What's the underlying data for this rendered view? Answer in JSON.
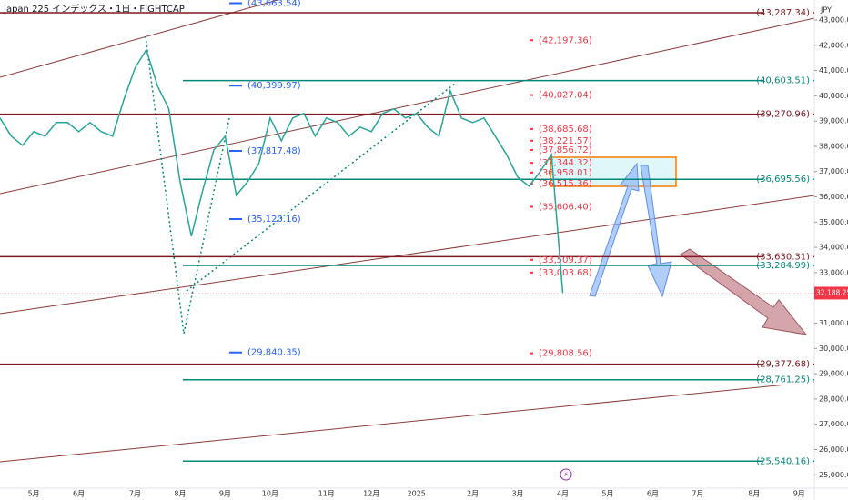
{
  "chart_data": {
    "type": "line",
    "title": "Japan 225 インデックス・1日・FIGHTCAP",
    "currency": "JPY",
    "color": "#26a69a",
    "categories": [
      null,
      null,
      null,
      "5月",
      null,
      null,
      null,
      "6月",
      null,
      null,
      null,
      null,
      "7月",
      null,
      null,
      null,
      "8月",
      null,
      null,
      null,
      "9月",
      null,
      null,
      null,
      "10月",
      null,
      null,
      null,
      null,
      "11月",
      null,
      null,
      null,
      "12月",
      null,
      null,
      null,
      "2025",
      null,
      null,
      null,
      null,
      "2月",
      null,
      null,
      null,
      "3月",
      null,
      null,
      null,
      "4月",
      null,
      null,
      null,
      "5月",
      null,
      null,
      null,
      "6月",
      null,
      null,
      null,
      "7月",
      null,
      null,
      null,
      null,
      "8月",
      null,
      null,
      null,
      "9月"
    ],
    "values": [
      39120,
      38400,
      38040,
      38580,
      38400,
      38940,
      38940,
      38580,
      38940,
      38580,
      38400,
      39840,
      41100,
      41820,
      40380,
      39480,
      36600,
      34440,
      36240,
      37860,
      38400,
      36060,
      36600,
      37320,
      39120,
      38220,
      39120,
      39300,
      38400,
      39120,
      38940,
      38400,
      38760,
      38580,
      39300,
      39480,
      39120,
      39300,
      38760,
      38400,
      40200,
      39120,
      38940,
      39120,
      38400,
      37680,
      36780,
      36420,
      37000,
      37680,
      32188.25,
      null,
      null,
      null,
      null,
      null,
      null,
      null,
      null,
      null,
      null,
      null,
      null,
      null,
      null,
      null,
      null,
      null,
      null,
      null,
      null,
      null
    ],
    "ylim": [
      24470,
      43790
    ],
    "yticks": [
      {
        "value": 43000,
        "label": "43,000.00"
      },
      {
        "value": 42000,
        "label": "42,000.00"
      },
      {
        "value": 41000,
        "label": "41,000.00"
      },
      {
        "value": 40000,
        "label": "40,000.00"
      },
      {
        "value": 39000,
        "label": "39,000.00"
      },
      {
        "value": 38000,
        "label": "38,000.00"
      },
      {
        "value": 37000,
        "label": "37,000.00"
      },
      {
        "value": 36000,
        "label": "36,000.00"
      },
      {
        "value": 35000,
        "label": "35,000.00"
      },
      {
        "value": 34000,
        "label": "34,000.00"
      },
      {
        "value": 33000,
        "label": "33,000.00"
      },
      {
        "value": 31000,
        "label": "31,000.00"
      },
      {
        "value": 30000,
        "label": "30,000.00"
      },
      {
        "value": 29000,
        "label": "29,000.00"
      },
      {
        "value": 28000,
        "label": "28,000.00"
      },
      {
        "value": 27000,
        "label": "27,000.00"
      },
      {
        "value": 26000,
        "label": "26,000.00"
      },
      {
        "value": 25000,
        "label": "25,000.00"
      }
    ],
    "last_price": {
      "value": 32188.25,
      "label": "32,188.25",
      "color": "#f23645"
    },
    "levels": [
      {
        "value": 43287.34,
        "label": "(43,287.34)",
        "color": "#801922"
      },
      {
        "value": 40603.51,
        "label": "(40,603.51)",
        "color": "#00897b"
      },
      {
        "value": 39270.96,
        "label": "(39,270.96)",
        "color": "#801922"
      },
      {
        "value": 36695.56,
        "label": "(36,695.56)",
        "color": "#00897b"
      },
      {
        "value": 33630.31,
        "label": "(33,630.31)",
        "color": "#801922"
      },
      {
        "value": 33284.99,
        "label": "(33,284.99)",
        "color": "#00897b"
      },
      {
        "value": 29377.68,
        "label": "(29,377.68)",
        "color": "#801922"
      },
      {
        "value": 28761.25,
        "label": "(28,761.25)",
        "color": "#00897b"
      },
      {
        "value": 25540.16,
        "label": "(25,540.16)",
        "color": "#00897b"
      }
    ],
    "annotations": [
      {
        "value": 43663.54,
        "label": "(43,663.54)",
        "color": "#2962ff"
      },
      {
        "value": 40399.97,
        "label": "(40,399.97)",
        "color": "#2962ff"
      },
      {
        "value": 37817.48,
        "label": "(37,817.48)",
        "color": "#2962ff"
      },
      {
        "value": 35120.16,
        "label": "(35,120.16)",
        "color": "#2962ff"
      },
      {
        "value": 29840.35,
        "label": "(29,840.35)",
        "color": "#2962ff"
      },
      {
        "value": 42197.36,
        "label": "(42,197.36)",
        "color": "#f23645"
      },
      {
        "value": 40027.04,
        "label": "(40,027.04)",
        "color": "#f23645"
      },
      {
        "value": 38685.68,
        "label": "(38,685.68)",
        "color": "#f23645"
      },
      {
        "value": 38221.57,
        "label": "(38,221.57)",
        "color": "#f23645"
      },
      {
        "value": 37856.72,
        "label": "(37,856.72)",
        "color": "#f23645"
      },
      {
        "value": 37344.32,
        "label": "(37,344.32)",
        "color": "#f23645"
      },
      {
        "value": 36958.01,
        "label": "(36,958.01)",
        "color": "#f23645"
      },
      {
        "value": 36515.36,
        "label": "(36,515.36)",
        "color": "#f23645"
      },
      {
        "value": 35606.4,
        "label": "(35,606.40)",
        "color": "#f23645"
      },
      {
        "value": 33509.37,
        "label": "(33,509.37)",
        "color": "#f23645"
      },
      {
        "value": 33003.68,
        "label": "(33,003.68)",
        "color": "#f23645"
      },
      {
        "value": 29808.56,
        "label": "(29,808.56)",
        "color": "#f23645"
      }
    ]
  }
}
